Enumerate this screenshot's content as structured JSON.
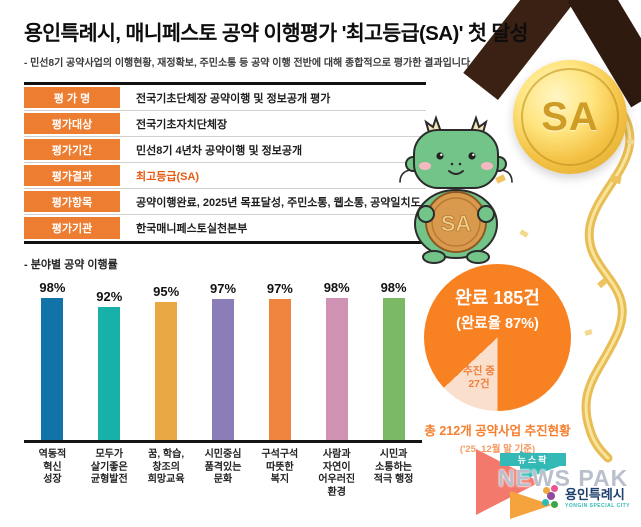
{
  "header": {
    "title": "용인특례시, 매니페스토 공약 이행평가 '최고등급(SA)' 첫 달성",
    "subtitle": "- 민선8기 공약사업의 이행현황, 재정확보, 주민소통 등 공약 이행 전반에 대해 종합적으로 평가한 결과입니다"
  },
  "medal": {
    "grade": "SA"
  },
  "mascot": {
    "coin_text": "SA"
  },
  "table": {
    "label_bg": "#ed7d31",
    "highlight_color": "#e75b12",
    "rows": [
      {
        "label": "평 가 명",
        "value": "전국기초단체장 공약이행 및 정보공개 평가"
      },
      {
        "label": "평가대상",
        "value": "전국기초자치단체장"
      },
      {
        "label": "평가기간",
        "value": "민선8기 4년차 공약이행 및 정보공개"
      },
      {
        "label": "평가결과",
        "value": "최고등급(SA)"
      },
      {
        "label": "평가항목",
        "value": "공약이행완료, 2025년 목표달성, 주민소통, 웹소통, 공약일치도"
      },
      {
        "label": "평가기관",
        "value": "한국매니페스토실천본부"
      }
    ]
  },
  "chart_data": [
    {
      "type": "bar",
      "section_label": "- 분야별 공약 이행률",
      "title": "분야별 공약 이행률",
      "categories": [
        "역동적\n혁신\n성장",
        "모두가\n살기좋은\n균형발전",
        "꿈, 학습,\n창조의\n희망교육",
        "시민중심\n품격있는\n문화",
        "구석구석\n따뜻한\n복지",
        "사람과\n자연이\n어우러진\n환경",
        "시민과\n소통하는\n적극 행정"
      ],
      "values": [
        98,
        92,
        95,
        97,
        97,
        98,
        98
      ],
      "unit": "%",
      "colors": [
        "#1173a7",
        "#17b1aa",
        "#e9a844",
        "#8b7db8",
        "#f0853f",
        "#cf92b2",
        "#7cb964"
      ],
      "ylim": [
        0,
        100
      ],
      "grid": false
    },
    {
      "type": "pie",
      "title": "총 212개 공약사업 추진현황",
      "total_count": 212,
      "slices": [
        {
          "label": "완료",
          "count": 185,
          "percent": 87,
          "display_l1": "완료 185건",
          "display_l2": "(완료율 87%)",
          "color": "#f88121"
        },
        {
          "label": "추진 중",
          "count": 27,
          "percent": 13,
          "display": "추진 중\n27건",
          "color": "#fbdfcd"
        }
      ]
    }
  ],
  "summary": {
    "line1": "총 212개 공약사업 추진현황",
    "line2": "('25. 12월 말 기준)"
  },
  "footer": {
    "newspak_korean": "뉴스팍",
    "newspak_english": "NEWS PAK",
    "city_korean": "용인특례시",
    "city_english": "YONGIN SPECIAL CITY"
  }
}
